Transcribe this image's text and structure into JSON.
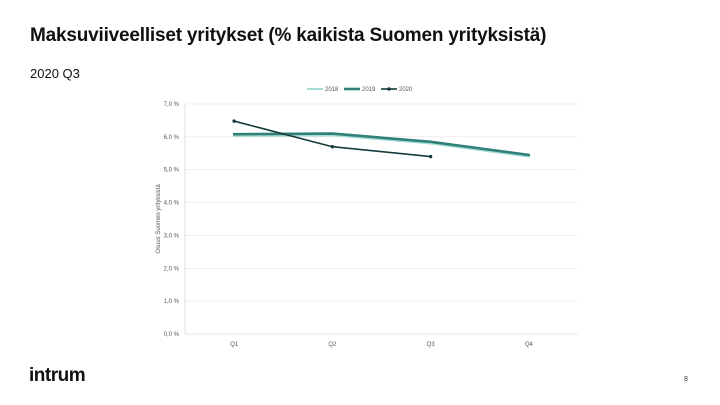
{
  "slide": {
    "title": "Maksuviiveelliset yritykset (% kaikista Suomen yrityksistä)",
    "subtitle": "2020 Q3",
    "logo_text": "intrum",
    "page_number": "8"
  },
  "chart_data": {
    "type": "line",
    "title": "",
    "xlabel": "",
    "ylabel": "Osuus Suomen yrityksistä",
    "categories": [
      "Q1",
      "Q2",
      "Q3",
      "Q4"
    ],
    "yticks": [
      "0,0 %",
      "1,0 %",
      "2,0 %",
      "3,0 %",
      "4,0 %",
      "5,0 %",
      "6,0 %",
      "7,0 %"
    ],
    "ylim": [
      0,
      7
    ],
    "grid": true,
    "legend_position": "top-center",
    "series": [
      {
        "name": "2018",
        "values": [
          6.03,
          6.05,
          5.8,
          5.4
        ],
        "color": "#a8dcd6"
      },
      {
        "name": "2019",
        "values": [
          6.08,
          6.1,
          5.85,
          5.45
        ],
        "color": "#2e8078"
      },
      {
        "name": "2020",
        "values": [
          6.48,
          5.7,
          5.4,
          null
        ],
        "color": "#163b3b"
      }
    ]
  }
}
